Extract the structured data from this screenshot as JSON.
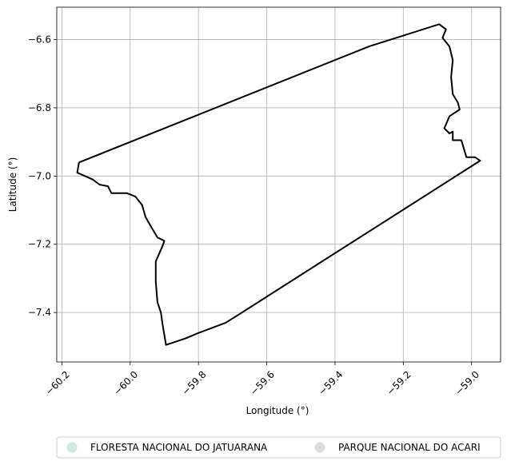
{
  "chart_data": {
    "type": "map",
    "title": "",
    "xlabel": "Longitude (°)",
    "ylabel": "Latitude (°)",
    "xlim": [
      -60.215,
      -58.915
    ],
    "ylim": [
      -7.545,
      -6.505
    ],
    "grid": true,
    "x_ticks": [
      -60.2,
      -60.0,
      -59.8,
      -59.6,
      -59.4,
      -59.2,
      -59.0
    ],
    "x_tick_labels": [
      "−60.2",
      "−60.0",
      "−59.8",
      "−59.6",
      "−59.4",
      "−59.2",
      "−59.0"
    ],
    "y_ticks": [
      -6.6,
      -6.8,
      -7.0,
      -7.2,
      -7.4
    ],
    "y_tick_labels": [
      "−6.6",
      "−6.8",
      "−7.0",
      "−7.2",
      "−7.4"
    ],
    "legend_position": "bottom-center",
    "legend": [
      {
        "label": "FLORESTA NACIONAL DO JATUARANA",
        "color": "#cde8dc"
      },
      {
        "label": "PARQUE NACIONAL DO ACARI",
        "color": "#dcdcdc"
      }
    ],
    "series": [
      {
        "boundary": [
          [
            -60.15,
            -6.96
          ],
          [
            -59.3,
            -6.62
          ],
          [
            -59.095,
            -6.555
          ],
          [
            -59.075,
            -6.57
          ],
          [
            -59.085,
            -6.595
          ],
          [
            -59.065,
            -6.62
          ],
          [
            -59.055,
            -6.66
          ],
          [
            -59.06,
            -6.71
          ],
          [
            -59.055,
            -6.76
          ],
          [
            -59.04,
            -6.785
          ],
          [
            -59.035,
            -6.805
          ],
          [
            -59.065,
            -6.825
          ],
          [
            -59.08,
            -6.86
          ],
          [
            -59.065,
            -6.875
          ],
          [
            -59.055,
            -6.87
          ],
          [
            -59.055,
            -6.895
          ],
          [
            -59.03,
            -6.895
          ],
          [
            -59.015,
            -6.945
          ],
          [
            -58.99,
            -6.945
          ],
          [
            -58.975,
            -6.955
          ],
          [
            -59.68,
            -7.405
          ],
          [
            -59.72,
            -7.43
          ],
          [
            -59.8,
            -7.46
          ],
          [
            -59.835,
            -7.475
          ],
          [
            -59.85,
            -7.48
          ],
          [
            -59.895,
            -7.495
          ],
          [
            -59.905,
            -7.435
          ],
          [
            -59.91,
            -7.4
          ],
          [
            -59.92,
            -7.37
          ],
          [
            -59.925,
            -7.31
          ],
          [
            -59.925,
            -7.25
          ],
          [
            -59.905,
            -7.205
          ],
          [
            -59.9,
            -7.19
          ],
          [
            -59.92,
            -7.18
          ],
          [
            -59.935,
            -7.155
          ],
          [
            -59.955,
            -7.12
          ],
          [
            -59.965,
            -7.085
          ],
          [
            -59.985,
            -7.06
          ],
          [
            -60.01,
            -7.05
          ],
          [
            -60.055,
            -7.05
          ],
          [
            -60.065,
            -7.03
          ],
          [
            -60.09,
            -7.025
          ],
          [
            -60.11,
            -7.01
          ],
          [
            -60.155,
            -6.99
          ],
          [
            -60.15,
            -6.96
          ]
        ]
      }
    ]
  }
}
